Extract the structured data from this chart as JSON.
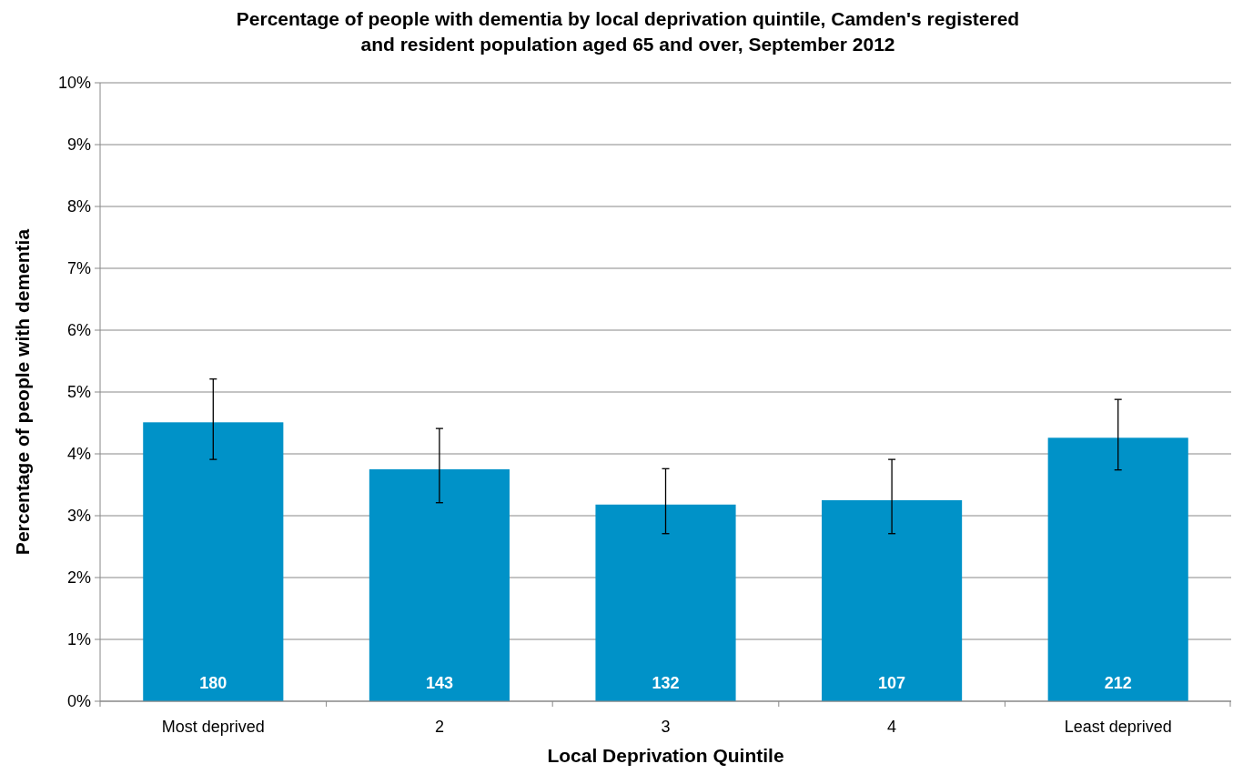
{
  "chart_data": {
    "type": "bar",
    "title": "Percentage of people with dementia by local deprivation quintile, Camden's registered and resident population aged 65 and over, September 2012",
    "xlabel": "Local Deprivation Quintile",
    "ylabel": "Percentage of people with dementia",
    "categories": [
      "Most deprived",
      "2",
      "3",
      "4",
      "Least deprived"
    ],
    "values": [
      4.51,
      3.75,
      3.18,
      3.25,
      4.26
    ],
    "errors": [
      [
        3.91,
        5.21
      ],
      [
        3.21,
        4.41
      ],
      [
        2.71,
        3.76
      ],
      [
        2.71,
        3.91
      ],
      [
        3.74,
        4.88
      ]
    ],
    "color": "#0092c8",
    "annotations": [
      {
        "text": "180",
        "x": "Most deprived",
        "y": 0
      },
      {
        "text": "143",
        "x": "2",
        "y": 0
      },
      {
        "text": "132",
        "x": "3",
        "y": 0
      },
      {
        "text": "107",
        "x": "4",
        "y": 0
      },
      {
        "text": "212",
        "x": "Least deprived",
        "y": 0
      }
    ],
    "ylim": [
      0,
      10
    ],
    "yticks": [
      {
        "value": 0,
        "label": "0%"
      },
      {
        "value": 1,
        "label": "1%"
      },
      {
        "value": 2,
        "label": "2%"
      },
      {
        "value": 3,
        "label": "3%"
      },
      {
        "value": 4,
        "label": "4%"
      },
      {
        "value": 5,
        "label": "5%"
      },
      {
        "value": 6,
        "label": "6%"
      },
      {
        "value": 7,
        "label": "7%"
      },
      {
        "value": 8,
        "label": "8%"
      },
      {
        "value": 9,
        "label": "9%"
      },
      {
        "value": 10,
        "label": "10%"
      }
    ],
    "grid": "y"
  }
}
